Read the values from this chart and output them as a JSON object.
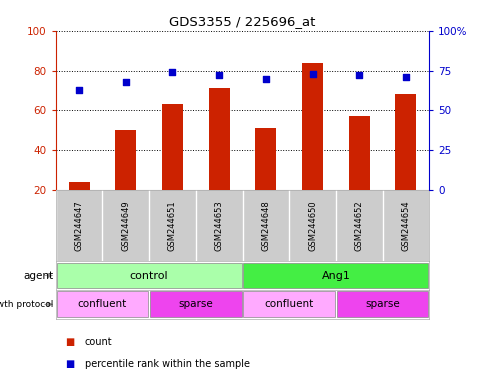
{
  "title": "GDS3355 / 225696_at",
  "samples": [
    "GSM244647",
    "GSM244649",
    "GSM244651",
    "GSM244653",
    "GSM244648",
    "GSM244650",
    "GSM244652",
    "GSM244654"
  ],
  "bar_values": [
    24,
    50,
    63,
    71,
    51,
    84,
    57,
    68
  ],
  "dot_values": [
    63,
    68,
    74,
    72,
    70,
    73,
    72,
    71
  ],
  "bar_color": "#cc2200",
  "dot_color": "#0000cc",
  "ylim_left": [
    20,
    100
  ],
  "ylim_right": [
    0,
    100
  ],
  "yticks_left": [
    20,
    40,
    60,
    80,
    100
  ],
  "ytick_labels_left": [
    "20",
    "40",
    "60",
    "80",
    "100"
  ],
  "yticks_right": [
    0,
    25,
    50,
    75,
    100
  ],
  "ytick_labels_right": [
    "0",
    "25",
    "50",
    "75",
    "100%"
  ],
  "agent_groups": [
    {
      "label": "control",
      "start": 0,
      "end": 4,
      "color": "#aaffaa"
    },
    {
      "label": "Ang1",
      "start": 4,
      "end": 8,
      "color": "#44ee44"
    }
  ],
  "growth_groups": [
    {
      "label": "confluent",
      "start": 0,
      "end": 2,
      "color": "#ffaaff"
    },
    {
      "label": "sparse",
      "start": 2,
      "end": 4,
      "color": "#ee44ee"
    },
    {
      "label": "confluent",
      "start": 4,
      "end": 6,
      "color": "#ffaaff"
    },
    {
      "label": "sparse",
      "start": 6,
      "end": 8,
      "color": "#ee44ee"
    }
  ],
  "legend_count_color": "#cc2200",
  "legend_dot_color": "#0000cc",
  "sample_box_color": "#cccccc",
  "grid_color": "#000000"
}
